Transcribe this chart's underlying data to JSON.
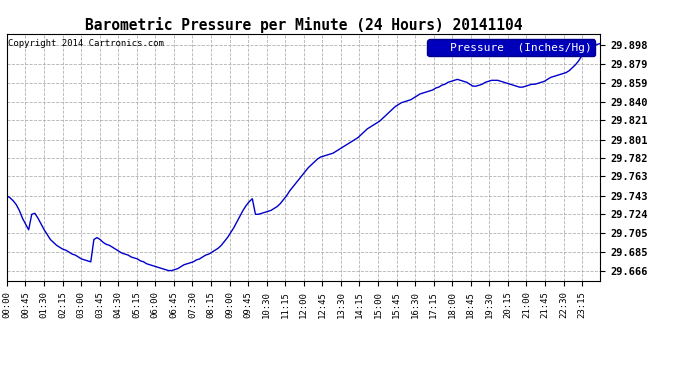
{
  "title": "Barometric Pressure per Minute (24 Hours) 20141104",
  "copyright_text": "Copyright 2014 Cartronics.com",
  "legend_label": "Pressure  (Inches/Hg)",
  "line_color": "#0000cc",
  "background_color": "#ffffff",
  "grid_color": "#aaaaaa",
  "legend_bg": "#0000bb",
  "legend_fg": "#ffffff",
  "yticks": [
    29.666,
    29.685,
    29.705,
    29.724,
    29.743,
    29.763,
    29.782,
    29.801,
    29.821,
    29.84,
    29.859,
    29.879,
    29.898
  ],
  "ylim": [
    29.655,
    29.91
  ],
  "xtick_interval_minutes": 45,
  "total_minutes": 1440,
  "pressure_data": [
    29.743,
    29.741,
    29.738,
    29.734,
    29.728,
    29.72,
    29.714,
    29.708,
    29.724,
    29.725,
    29.72,
    29.714,
    29.708,
    29.703,
    29.698,
    29.695,
    29.692,
    29.69,
    29.688,
    29.687,
    29.685,
    29.683,
    29.682,
    29.68,
    29.678,
    29.677,
    29.676,
    29.675,
    29.698,
    29.7,
    29.698,
    29.695,
    29.693,
    29.692,
    29.69,
    29.688,
    29.686,
    29.684,
    29.683,
    29.682,
    29.68,
    29.679,
    29.678,
    29.676,
    29.675,
    29.673,
    29.672,
    29.671,
    29.67,
    29.669,
    29.668,
    29.667,
    29.666,
    29.666,
    29.667,
    29.668,
    29.67,
    29.672,
    29.673,
    29.674,
    29.675,
    29.677,
    29.678,
    29.68,
    29.682,
    29.683,
    29.685,
    29.687,
    29.689,
    29.692,
    29.696,
    29.7,
    29.705,
    29.71,
    29.716,
    29.722,
    29.728,
    29.733,
    29.737,
    29.74,
    29.724,
    29.724,
    29.725,
    29.726,
    29.727,
    29.728,
    29.73,
    29.732,
    29.735,
    29.739,
    29.743,
    29.748,
    29.752,
    29.756,
    29.76,
    29.764,
    29.768,
    29.772,
    29.775,
    29.778,
    29.781,
    29.783,
    29.784,
    29.785,
    29.786,
    29.787,
    29.789,
    29.791,
    29.793,
    29.795,
    29.797,
    29.799,
    29.801,
    29.803,
    29.806,
    29.809,
    29.812,
    29.814,
    29.816,
    29.818,
    29.82,
    29.823,
    29.826,
    29.829,
    29.832,
    29.835,
    29.837,
    29.839,
    29.84,
    29.841,
    29.842,
    29.844,
    29.846,
    29.848,
    29.849,
    29.85,
    29.851,
    29.852,
    29.854,
    29.855,
    29.857,
    29.858,
    29.86,
    29.861,
    29.862,
    29.863,
    29.862,
    29.861,
    29.86,
    29.858,
    29.856,
    29.856,
    29.857,
    29.858,
    29.86,
    29.861,
    29.862,
    29.862,
    29.862,
    29.861,
    29.86,
    29.859,
    29.858,
    29.857,
    29.856,
    29.855,
    29.855,
    29.856,
    29.857,
    29.858,
    29.858,
    29.859,
    29.86,
    29.861,
    29.863,
    29.865,
    29.866,
    29.867,
    29.868,
    29.869,
    29.87,
    29.872,
    29.875,
    29.878,
    29.882,
    29.887,
    29.892,
    29.895,
    29.897,
    29.898,
    29.899,
    29.9
  ]
}
